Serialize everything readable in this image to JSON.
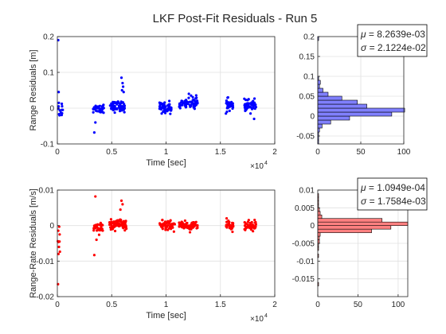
{
  "title": "LKF Post-Fit Residuals - Run 5",
  "colors": {
    "range": "#0000ff",
    "range_hist_fill": "#8080ff",
    "rate": "#ff0000",
    "rate_hist_fill": "#ff8080",
    "grid": "#e0e0e0",
    "axis": "#262626"
  },
  "chart_data": [
    {
      "id": "range_scatter",
      "type": "scatter",
      "xlabel": "Time [sec]",
      "ylabel": "Range Residuals [m]",
      "xlim": [
        0,
        20000
      ],
      "ylim": [
        -0.1,
        0.2
      ],
      "x_exponent_label": "×10",
      "x_exponent_power": "4",
      "x_ticks": [
        0,
        5000,
        10000,
        15000,
        20000
      ],
      "x_tick_labels": [
        "0",
        "0.5",
        "1",
        "1.5",
        "2"
      ],
      "y_ticks": [
        -0.1,
        0,
        0.1,
        0.2
      ],
      "y_tick_labels": [
        "-0.1",
        "0",
        "0.1",
        "0.2"
      ],
      "grid": true,
      "color": "#0000ff",
      "segments": [
        {
          "x_range": [
            0,
            500
          ],
          "n": 12,
          "y_mean": 0.0,
          "y_spread": 0.02,
          "extra": [
            [
              80,
              0.19
            ],
            [
              120,
              0.045
            ],
            [
              200,
              -0.02
            ]
          ]
        },
        {
          "x_range": [
            3300,
            4300
          ],
          "n": 30,
          "y_mean": 0.0,
          "y_spread": 0.012,
          "extra": [
            [
              3400,
              -0.068
            ],
            [
              3500,
              -0.04
            ],
            [
              4100,
              -0.01
            ]
          ]
        },
        {
          "x_range": [
            4800,
            6200
          ],
          "n": 60,
          "y_mean": 0.005,
          "y_spread": 0.012,
          "extra": [
            [
              5900,
              0.085
            ],
            [
              6000,
              0.07
            ],
            [
              6050,
              0.06
            ],
            [
              5950,
              0.05
            ],
            [
              6100,
              0.045
            ]
          ]
        },
        {
          "x_range": [
            9400,
            10500
          ],
          "n": 50,
          "y_mean": 0.0,
          "y_spread": 0.012,
          "extra": [
            [
              9600,
              -0.015
            ],
            [
              10300,
              0.02
            ]
          ]
        },
        {
          "x_range": [
            11200,
            12900
          ],
          "n": 70,
          "y_mean": 0.015,
          "y_spread": 0.012,
          "extra": [
            [
              12100,
              0.04
            ],
            [
              12300,
              0.035
            ],
            [
              11300,
              0.0
            ]
          ]
        },
        {
          "x_range": [
            15500,
            16200
          ],
          "n": 30,
          "y_mean": 0.01,
          "y_spread": 0.012,
          "extra": [
            [
              15700,
              0.03
            ],
            [
              15600,
              -0.01
            ]
          ]
        },
        {
          "x_range": [
            17200,
            18300
          ],
          "n": 50,
          "y_mean": 0.005,
          "y_spread": 0.013,
          "extra": [
            [
              18100,
              -0.03
            ],
            [
              17600,
              0.025
            ]
          ]
        }
      ]
    },
    {
      "id": "range_hist",
      "type": "bar",
      "orientation": "horizontal",
      "xlim": [
        0,
        100
      ],
      "ylim": [
        -0.07,
        0.2
      ],
      "x_ticks": [
        0,
        50,
        100
      ],
      "x_tick_labels": [
        "0",
        "50",
        "100"
      ],
      "y_ticks": [
        -0.05,
        0,
        0.05,
        0.1,
        0.15,
        0.2
      ],
      "y_tick_labels": [
        "-0.05",
        "0",
        "0.05",
        "0.1",
        "0.15",
        "0.2"
      ],
      "bin_width": 0.01,
      "bin_centers": [
        -0.065,
        -0.055,
        -0.045,
        -0.035,
        -0.025,
        -0.015,
        -0.005,
        0.005,
        0.015,
        0.025,
        0.035,
        0.045,
        0.055,
        0.065,
        0.075,
        0.085,
        0.095,
        0.105,
        0.115,
        0.125,
        0.135,
        0.145,
        0.155,
        0.165,
        0.175,
        0.185,
        0.195
      ],
      "counts": [
        1,
        1,
        1,
        2,
        5,
        15,
        37,
        86,
        101,
        57,
        46,
        28,
        12,
        6,
        2,
        3,
        1,
        0,
        0,
        0,
        0,
        0,
        0,
        0,
        0,
        0,
        1
      ],
      "stats": {
        "mu_label": "μ",
        "mu_value": " = 8.2639e-03",
        "sigma_label": "σ",
        "sigma_value": " = 2.1224e-02"
      },
      "grid": true
    },
    {
      "id": "rate_scatter",
      "type": "scatter",
      "xlabel": "Time [sec]",
      "ylabel": "Range-Rate Residuals [m/s]",
      "xlim": [
        0,
        20000
      ],
      "ylim": [
        -0.02,
        0.01
      ],
      "x_exponent_label": "×10",
      "x_exponent_power": "4",
      "x_ticks": [
        0,
        5000,
        10000,
        15000,
        20000
      ],
      "x_tick_labels": [
        "0",
        "0.5",
        "1",
        "1.5",
        "2"
      ],
      "y_ticks": [
        -0.02,
        -0.01,
        0,
        0.01
      ],
      "y_tick_labels": [
        "-0.02",
        "-0.01",
        "0",
        "0.01"
      ],
      "grid": true,
      "color": "#ff0000",
      "segments": [
        {
          "x_range": [
            0,
            300
          ],
          "n": 6,
          "y_mean": -0.003,
          "y_spread": 0.003,
          "extra": [
            [
              60,
              -0.0165
            ],
            [
              100,
              -0.008
            ],
            [
              150,
              -0.006
            ],
            [
              200,
              -0.0045
            ]
          ]
        },
        {
          "x_range": [
            3300,
            4200
          ],
          "n": 30,
          "y_mean": -0.0005,
          "y_spread": 0.0012,
          "extra": [
            [
              3500,
              0.0082
            ],
            [
              3400,
              -0.0083
            ],
            [
              3600,
              -0.004
            ]
          ]
        },
        {
          "x_range": [
            4800,
            6400
          ],
          "n": 70,
          "y_mean": 0.0002,
          "y_spread": 0.0012,
          "extra": [
            [
              5900,
              0.007
            ],
            [
              6000,
              0.006
            ],
            [
              5800,
              0.0045
            ]
          ]
        },
        {
          "x_range": [
            9400,
            10800
          ],
          "n": 60,
          "y_mean": 0.0,
          "y_spread": 0.0011,
          "extra": []
        },
        {
          "x_range": [
            11200,
            12900
          ],
          "n": 70,
          "y_mean": 0.0,
          "y_spread": 0.0011,
          "extra": []
        },
        {
          "x_range": [
            15500,
            16200
          ],
          "n": 30,
          "y_mean": 0.0,
          "y_spread": 0.0011,
          "extra": []
        },
        {
          "x_range": [
            17200,
            18300
          ],
          "n": 50,
          "y_mean": 0.0,
          "y_spread": 0.0011,
          "extra": []
        }
      ]
    },
    {
      "id": "rate_hist",
      "type": "bar",
      "orientation": "horizontal",
      "xlim": [
        0,
        112
      ],
      "ylim": [
        -0.02,
        0.01
      ],
      "x_ticks": [
        0,
        50,
        100
      ],
      "x_tick_labels": [
        "0",
        "50",
        "100"
      ],
      "y_ticks": [
        -0.015,
        -0.01,
        -0.005,
        0,
        0.005,
        0.01
      ],
      "y_tick_labels": [
        "-0.015",
        "-0.01",
        "-0.005",
        "0",
        "0.005",
        "0.01"
      ],
      "bin_width": 0.001,
      "bin_centers": [
        -0.0165,
        -0.0155,
        -0.0145,
        -0.0135,
        -0.0125,
        -0.0115,
        -0.0105,
        -0.0095,
        -0.0085,
        -0.0075,
        -0.0065,
        -0.0055,
        -0.0045,
        -0.0035,
        -0.0025,
        -0.0015,
        -0.0005,
        0.0005,
        0.0015,
        0.0025,
        0.0035,
        0.0045,
        0.0055,
        0.0065,
        0.0075,
        0.0085
      ],
      "counts": [
        1,
        0,
        0,
        0,
        0,
        0,
        0,
        0,
        1,
        0,
        1,
        1,
        2,
        2,
        3,
        67,
        91,
        112,
        80,
        5,
        3,
        2,
        1,
        1,
        1,
        1
      ],
      "stats": {
        "mu_label": "μ",
        "mu_value": " = 1.0949e-04",
        "sigma_label": "σ",
        "sigma_value": " = 1.7584e-03"
      },
      "grid": true
    }
  ]
}
